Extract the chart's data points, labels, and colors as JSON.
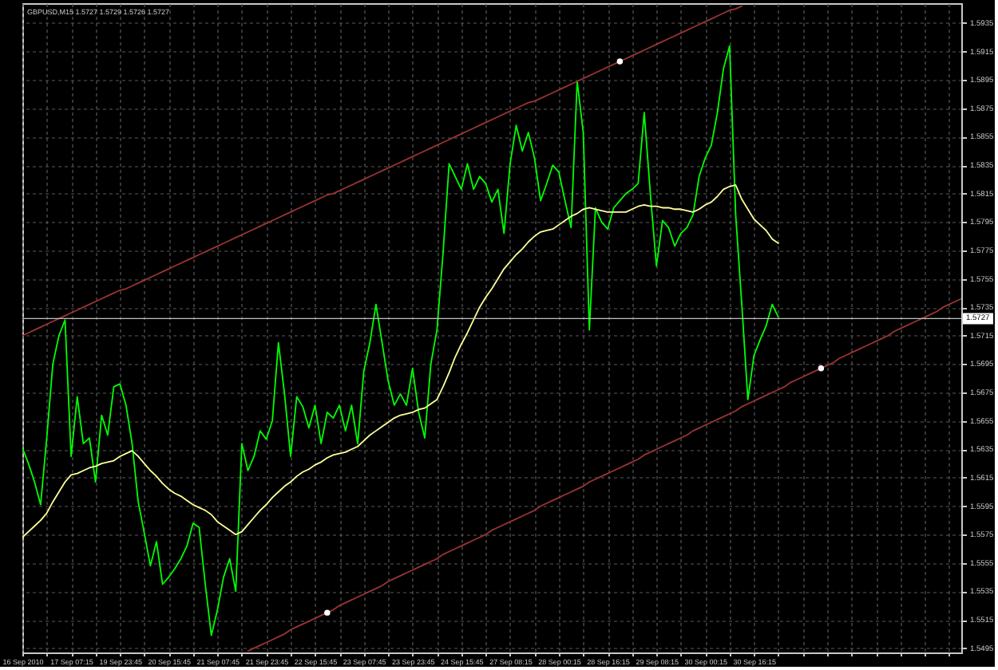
{
  "chart_data": {
    "type": "line",
    "title": "GBPUSD,M15 1.5727 1.5729 1.5726 1.5727",
    "categories": [
      "16 Sep 2010",
      null,
      null,
      null,
      null,
      null,
      null,
      null,
      "17 Sep 07:15",
      null,
      null,
      null,
      null,
      null,
      null,
      null,
      "19 Sep 23:45",
      null,
      null,
      null,
      null,
      null,
      null,
      null,
      "20 Sep 15:45",
      null,
      null,
      null,
      null,
      null,
      null,
      null,
      "21 Sep 07:45",
      null,
      null,
      null,
      null,
      null,
      null,
      null,
      "21 Sep 23:45",
      null,
      null,
      null,
      null,
      null,
      null,
      null,
      "22 Sep 15:45",
      null,
      null,
      null,
      null,
      null,
      null,
      null,
      "23 Sep 07:45",
      null,
      null,
      null,
      null,
      null,
      null,
      null,
      "23 Sep 23:45",
      null,
      null,
      null,
      null,
      null,
      null,
      null,
      "24 Sep 15:45",
      null,
      null,
      null,
      null,
      null,
      null,
      null,
      "27 Sep 08:15",
      null,
      null,
      null,
      null,
      null,
      null,
      null,
      "28 Sep 00:15",
      null,
      null,
      null,
      null,
      null,
      null,
      null,
      "28 Sep 16:15",
      null,
      null,
      null,
      null,
      null,
      null,
      null,
      "29 Sep 08:15",
      null,
      null,
      null,
      null,
      null,
      null,
      null,
      "30 Sep 00:15",
      null,
      null,
      null,
      null,
      null,
      null,
      null,
      "30 Sep 16:15",
      null,
      null,
      null,
      null,
      null,
      null,
      null,
      null,
      null,
      null,
      null,
      null,
      null,
      null,
      null,
      null,
      null,
      null,
      null,
      null,
      null,
      null,
      null,
      null,
      null,
      null,
      null,
      null,
      null,
      null,
      null,
      null,
      null,
      null
    ],
    "ylim": [
      1.5492,
      1.5949
    ],
    "yticks": [
      1.5495,
      1.5515,
      1.5535,
      1.5555,
      1.5575,
      1.5595,
      1.5615,
      1.5635,
      1.5655,
      1.5675,
      1.5695,
      1.5715,
      1.5735,
      1.5755,
      1.5775,
      1.5795,
      1.5815,
      1.5835,
      1.5855,
      1.5875,
      1.5895,
      1.5915,
      1.5935
    ],
    "grid": true,
    "line_style": "solid",
    "ref_lines": [
      {
        "axis": "y",
        "value": 1.5727,
        "label": "1.5727",
        "color": "#c0c0c0"
      }
    ],
    "series": [
      {
        "color": "#00ff00",
        "values": [
          1.5636,
          1.5625,
          1.5612,
          1.5596,
          1.5643,
          1.5695,
          1.5715,
          1.5726,
          1.563,
          1.5672,
          1.5639,
          1.5643,
          1.5612,
          1.5659,
          1.5645,
          1.5679,
          1.5681,
          1.5666,
          1.5639,
          1.5598,
          1.5576,
          1.5553,
          1.557,
          1.554,
          1.5545,
          1.5551,
          1.5558,
          1.5567,
          1.5583,
          1.558,
          1.554,
          1.5504,
          1.5522,
          1.5545,
          1.5558,
          1.5535,
          1.5639,
          1.562,
          1.563,
          1.5648,
          1.5642,
          1.5655,
          1.571,
          1.5674,
          1.563,
          1.5672,
          1.5665,
          1.565,
          1.5666,
          1.5639,
          1.5661,
          1.5657,
          1.5666,
          1.5648,
          1.5666,
          1.5639,
          1.569,
          1.571,
          1.5737,
          1.571,
          1.5683,
          1.5666,
          1.5674,
          1.5666,
          1.5692,
          1.5661,
          1.5643,
          1.5695,
          1.5719,
          1.5773,
          1.5836,
          1.5827,
          1.5818,
          1.5836,
          1.5818,
          1.5827,
          1.5822,
          1.5809,
          1.5818,
          1.5787,
          1.5836,
          1.5863,
          1.5845,
          1.5858,
          1.584,
          1.581,
          1.5822,
          1.5835,
          1.583,
          1.581,
          1.5791,
          1.5894,
          1.5858,
          1.5719,
          1.5805,
          1.5795,
          1.579,
          1.5805,
          1.581,
          1.5815,
          1.5818,
          1.5822,
          1.5872,
          1.5815,
          1.5764,
          1.5796,
          1.5791,
          1.5778,
          1.5787,
          1.5791,
          1.58,
          1.5827,
          1.584,
          1.5849,
          1.5872,
          1.5903,
          1.5919,
          1.58,
          1.5737,
          1.567,
          1.5701,
          1.5712,
          1.5722,
          1.5737,
          1.5728,
          null,
          null,
          null,
          null,
          null,
          null,
          null,
          null,
          null,
          null,
          null,
          null,
          null,
          null,
          null,
          null,
          null,
          null,
          null,
          null,
          null,
          null,
          null,
          null,
          null,
          null,
          null,
          null,
          null,
          null
        ]
      },
      {
        "color": "#ffff99",
        "values": [
          1.5573,
          1.5577,
          1.5581,
          1.5585,
          1.559,
          1.5598,
          1.5605,
          1.5612,
          1.5617,
          1.5618,
          1.562,
          1.5622,
          1.5623,
          1.5625,
          1.5626,
          1.5627,
          1.563,
          1.5632,
          1.5634,
          1.563,
          1.5625,
          1.562,
          1.5616,
          1.5611,
          1.5607,
          1.5604,
          1.5602,
          1.5599,
          1.5596,
          1.5594,
          1.5592,
          1.5589,
          1.5584,
          1.5581,
          1.5578,
          1.5575,
          1.5577,
          1.5582,
          1.5587,
          1.5592,
          1.5596,
          1.5601,
          1.5605,
          1.5609,
          1.5612,
          1.5616,
          1.5619,
          1.5621,
          1.5624,
          1.5626,
          1.5629,
          1.5631,
          1.5632,
          1.5633,
          1.5635,
          1.5637,
          1.5641,
          1.5645,
          1.5648,
          1.5651,
          1.5654,
          1.5657,
          1.5659,
          1.566,
          1.5661,
          1.5663,
          1.5664,
          1.5667,
          1.567,
          1.5679,
          1.5689,
          1.57,
          1.5709,
          1.5717,
          1.5726,
          1.5735,
          1.5742,
          1.5748,
          1.5755,
          1.5762,
          1.5767,
          1.5772,
          1.5776,
          1.5781,
          1.5785,
          1.5788,
          1.5789,
          1.579,
          1.5793,
          1.5796,
          1.5799,
          1.5801,
          1.5804,
          1.5805,
          1.5804,
          1.5803,
          1.5802,
          1.5802,
          1.5802,
          1.5802,
          1.5804,
          1.5806,
          1.5807,
          1.5806,
          1.5806,
          1.5805,
          1.5805,
          1.5804,
          1.5804,
          1.5803,
          1.5802,
          1.5804,
          1.5807,
          1.5809,
          1.5813,
          1.5818,
          1.582,
          1.5821,
          1.5811,
          1.5804,
          1.5797,
          1.5793,
          1.5789,
          1.5783,
          1.578,
          null,
          null,
          null,
          null,
          null,
          null,
          null,
          null,
          null,
          null,
          null,
          null,
          null,
          null,
          null,
          null,
          null,
          null,
          null,
          null,
          null,
          null,
          null,
          null,
          null,
          null,
          null,
          null,
          null,
          null
        ]
      },
      {
        "color": "#9a3434",
        "values": [
          1.5715,
          1.5717,
          1.5719,
          1.5721,
          1.5723,
          1.5725,
          1.5727,
          1.5729,
          1.5731,
          1.5733,
          1.5735,
          1.5737,
          1.5739,
          1.5741,
          1.5743,
          1.5745,
          1.5747,
          1.5748,
          1.575,
          1.5752,
          1.5754,
          1.5756,
          1.5758,
          1.576,
          1.5762,
          1.5764,
          1.5766,
          1.5768,
          1.577,
          1.5772,
          1.5774,
          1.5776,
          1.5778,
          1.578,
          1.5782,
          1.5784,
          1.5786,
          1.5788,
          1.579,
          1.5792,
          1.5794,
          1.5796,
          1.5798,
          1.58,
          1.5802,
          1.5804,
          1.5806,
          1.5808,
          1.581,
          1.5812,
          1.5814,
          1.5815,
          1.5817,
          1.5819,
          1.5821,
          1.5823,
          1.5825,
          1.5827,
          1.5829,
          1.5831,
          1.5833,
          1.5835,
          1.5837,
          1.5839,
          1.5841,
          1.5843,
          1.5845,
          1.5847,
          1.5849,
          1.5851,
          1.5853,
          1.5855,
          1.5857,
          1.5859,
          1.5861,
          1.5863,
          1.5865,
          1.5867,
          1.5869,
          1.5871,
          1.5873,
          1.5875,
          1.5877,
          1.5879,
          1.588,
          1.5882,
          1.5884,
          1.5886,
          1.5888,
          1.589,
          1.5892,
          1.5894,
          1.5896,
          1.5898,
          1.59,
          1.5902,
          1.5904,
          1.5906,
          1.5908,
          1.591,
          1.5912,
          1.5914,
          1.5916,
          1.5918,
          1.592,
          1.5922,
          1.5924,
          1.5926,
          1.5928,
          1.593,
          1.5932,
          1.5934,
          1.5936,
          1.5938,
          1.594,
          1.5942,
          1.5944,
          1.5945,
          1.5947,
          null,
          null,
          null,
          null,
          null,
          null,
          null,
          null,
          null,
          null,
          null,
          null,
          null,
          null,
          null,
          null,
          null,
          null,
          null,
          null,
          null,
          null,
          null,
          null,
          null,
          null,
          null,
          null,
          null,
          null,
          null,
          null,
          null,
          null,
          null,
          null
        ]
      },
      {
        "color": "#9a3434",
        "values": [
          null,
          null,
          null,
          null,
          null,
          null,
          null,
          null,
          null,
          null,
          null,
          null,
          null,
          null,
          null,
          null,
          null,
          null,
          null,
          null,
          null,
          null,
          null,
          null,
          null,
          null,
          null,
          null,
          null,
          null,
          null,
          null,
          null,
          null,
          null,
          null,
          null,
          1.5493,
          1.5495,
          1.5497,
          1.5499,
          1.5501,
          1.5503,
          1.5505,
          1.5508,
          1.551,
          1.5512,
          1.5514,
          1.5516,
          1.5518,
          1.552,
          1.5522,
          1.5525,
          1.5527,
          1.5529,
          1.5531,
          1.5533,
          1.5535,
          1.5537,
          1.5539,
          1.5542,
          1.5544,
          1.5546,
          1.5548,
          1.555,
          1.5552,
          1.5554,
          1.5556,
          1.5558,
          1.5561,
          1.5563,
          1.5565,
          1.5567,
          1.5569,
          1.5571,
          1.5573,
          1.5575,
          1.5578,
          1.558,
          1.5582,
          1.5584,
          1.5586,
          1.5588,
          1.559,
          1.5592,
          1.5595,
          1.5597,
          1.5599,
          1.5601,
          1.5603,
          1.5605,
          1.5607,
          1.5609,
          1.5612,
          1.5614,
          1.5616,
          1.5618,
          1.562,
          1.5622,
          1.5624,
          1.5626,
          1.5628,
          1.5631,
          1.5633,
          1.5635,
          1.5637,
          1.5639,
          1.5641,
          1.5643,
          1.5645,
          1.5648,
          1.565,
          1.5652,
          1.5654,
          1.5656,
          1.5658,
          1.566,
          1.5662,
          1.5665,
          1.5667,
          1.5669,
          1.5671,
          1.5673,
          1.5675,
          1.5677,
          1.5679,
          1.5682,
          1.5684,
          1.5686,
          1.5688,
          1.569,
          1.5692,
          1.5694,
          1.5696,
          1.5699,
          1.5701,
          1.5703,
          1.5705,
          1.5707,
          1.5709,
          1.5711,
          1.5713,
          1.5715,
          1.5718,
          1.572,
          1.5722,
          1.5724,
          1.5726,
          1.5728,
          1.573,
          1.5732,
          1.5735,
          1.5737,
          1.5739,
          1.5741
        ]
      },
      {
        "type": "scatter",
        "color": "#ffffff",
        "values": [
          null,
          null,
          null,
          null,
          null,
          null,
          null,
          null,
          null,
          null,
          null,
          null,
          null,
          null,
          null,
          null,
          null,
          null,
          null,
          null,
          null,
          null,
          null,
          null,
          null,
          null,
          null,
          null,
          null,
          null,
          null,
          null,
          null,
          null,
          null,
          null,
          null,
          null,
          null,
          null,
          null,
          null,
          null,
          null,
          null,
          null,
          null,
          null,
          null,
          null,
          1.552,
          null,
          null,
          null,
          null,
          null,
          null,
          null,
          null,
          null,
          null,
          null,
          null,
          null,
          null,
          null,
          null,
          null,
          null,
          null,
          null,
          null,
          null,
          null,
          null,
          null,
          null,
          null,
          null,
          null,
          null,
          null,
          null,
          null,
          null,
          null,
          null,
          null,
          null,
          null,
          null,
          null,
          null,
          null,
          null,
          null,
          null,
          null,
          1.5908,
          null,
          null,
          null,
          null,
          null,
          null,
          null,
          null,
          null,
          null,
          null,
          null,
          null,
          null,
          null,
          null,
          null,
          null,
          null,
          null,
          null,
          null,
          null,
          null,
          null,
          null,
          null,
          null,
          null,
          null,
          null,
          null,
          1.5692,
          null,
          null,
          null,
          null,
          null,
          null,
          null,
          null,
          null,
          null,
          null,
          null,
          null,
          null,
          null,
          null,
          null,
          null,
          null,
          null,
          null,
          null,
          null
        ]
      }
    ]
  }
}
